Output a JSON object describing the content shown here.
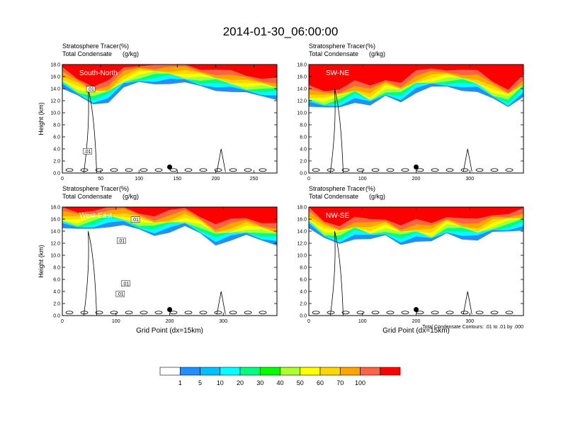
{
  "figure": {
    "title": "2014-01-30_06:00:00",
    "contour_note": "Total Condensate Contours: .01 to .01 by .000"
  },
  "chart_data": {
    "type": "cross-section-contour",
    "panels": [
      {
        "label": "South-North",
        "subtitle_left_1": "Stratosphere Tracer",
        "subtitle_right_1": "(%)",
        "subtitle_left_2": "Total Condensate",
        "subtitle_right_2": "(g/kg)",
        "ylabel": "Height (km)",
        "xlabel": "",
        "xlim": [
          0,
          280
        ],
        "xticks": [
          0,
          50,
          100,
          150,
          200,
          250
        ],
        "ylim": [
          0,
          18
        ],
        "yticks": [
          "0.0",
          "2.0",
          "4.0",
          "6.0",
          "8.0",
          "10.0",
          "12.0",
          "14.0",
          "16.0",
          "18.0"
        ],
        "marker": {
          "x": 140,
          "y": 1.0
        },
        "contour_labels": [
          {
            "text": ".01",
            "x": 37,
            "y": 13.8
          },
          {
            "text": ".01",
            "x": 33,
            "y": 3.5
          }
        ],
        "tracer_base_km": [
          14.0,
          12.5,
          11.5,
          12.0,
          14.0,
          14.8,
          15.0,
          15.0,
          14.7,
          14.3,
          14.0,
          13.5,
          13.0,
          12.8,
          12.5
        ]
      },
      {
        "label": "SW-NE",
        "subtitle_left_1": "Stratosphere Tracer",
        "subtitle_right_1": "(%)",
        "subtitle_left_2": "Total Condensate",
        "subtitle_right_2": "(g/kg)",
        "ylabel": "",
        "xlabel": "",
        "xlim": [
          0,
          400
        ],
        "xticks": [
          0,
          100,
          200,
          300
        ],
        "ylim": [
          0,
          18
        ],
        "yticks": [
          "0.0",
          "2.0",
          "4.0",
          "6.0",
          "8.0",
          "10.0",
          "12.0",
          "14.0",
          "16.0",
          "18.0"
        ],
        "marker": {
          "x": 200,
          "y": 1.0
        },
        "contour_labels": [],
        "tracer_base_km": [
          11.0,
          10.5,
          11.0,
          12.0,
          11.0,
          12.5,
          12.0,
          13.5,
          14.0,
          14.2,
          14.0,
          13.5,
          12.0,
          11.0,
          13.0
        ]
      },
      {
        "label": "West-East",
        "subtitle_left_1": "Stratosphere Tracer",
        "subtitle_right_1": "(%)",
        "subtitle_left_2": "Total Condensate",
        "subtitle_right_2": "(g/kg)",
        "ylabel": "Height (km)",
        "xlabel": "Grid Point (dx=15km)",
        "xlim": [
          0,
          400
        ],
        "xticks": [
          0,
          100,
          200,
          300
        ],
        "ylim": [
          0,
          18
        ],
        "yticks": [
          "0.0",
          "2.0",
          "4.0",
          "6.0",
          "8.0",
          "10.0",
          "12.0",
          "14.0",
          "16.0",
          "18.0"
        ],
        "marker": {
          "x": 200,
          "y": 1.0
        },
        "contour_labels": [
          {
            "text": ".01",
            "x": 136,
            "y": 15.8
          },
          {
            "text": ".01",
            "x": 110,
            "y": 12.3
          },
          {
            "text": ".01",
            "x": 118,
            "y": 5.2
          },
          {
            "text": ".01",
            "x": 108,
            "y": 3.5
          }
        ],
        "tracer_base_km": [
          14.5,
          14.0,
          14.5,
          15.0,
          14.8,
          14.0,
          13.5,
          14.0,
          14.5,
          13.5,
          12.0,
          12.5,
          13.0,
          12.5,
          12.0
        ]
      },
      {
        "label": "NW-SE",
        "subtitle_left_1": "Stratosphere Tracer",
        "subtitle_right_1": "(%)",
        "subtitle_left_2": "Total Condensate",
        "subtitle_right_2": "(g/kg)",
        "ylabel": "",
        "xlabel": "Grid Point (dx=15km)",
        "xlim": [
          0,
          400
        ],
        "xticks": [
          0,
          100,
          200,
          300
        ],
        "ylim": [
          0,
          18
        ],
        "yticks": [
          "0.0",
          "2.0",
          "4.0",
          "6.0",
          "8.0",
          "10.0",
          "12.0",
          "14.0",
          "16.0",
          "18.0"
        ],
        "marker": {
          "x": 200,
          "y": 1.0
        },
        "contour_labels": [],
        "tracer_base_km": [
          14.5,
          12.5,
          12.0,
          13.0,
          12.5,
          13.0,
          12.0,
          12.5,
          12.0,
          13.5,
          13.0,
          12.5,
          13.5,
          14.0,
          14.5
        ]
      }
    ],
    "colorbar": {
      "levels": [
        "1",
        "5",
        "10",
        "20",
        "30",
        "40",
        "50",
        "60",
        "70",
        "100"
      ],
      "colors": [
        "#ffffff",
        "#1e90ff",
        "#00bfff",
        "#00ffff",
        "#00ff7f",
        "#00ff00",
        "#adff2f",
        "#ffff00",
        "#ffd700",
        "#ffa500",
        "#ff6347",
        "#ff0000"
      ]
    }
  }
}
